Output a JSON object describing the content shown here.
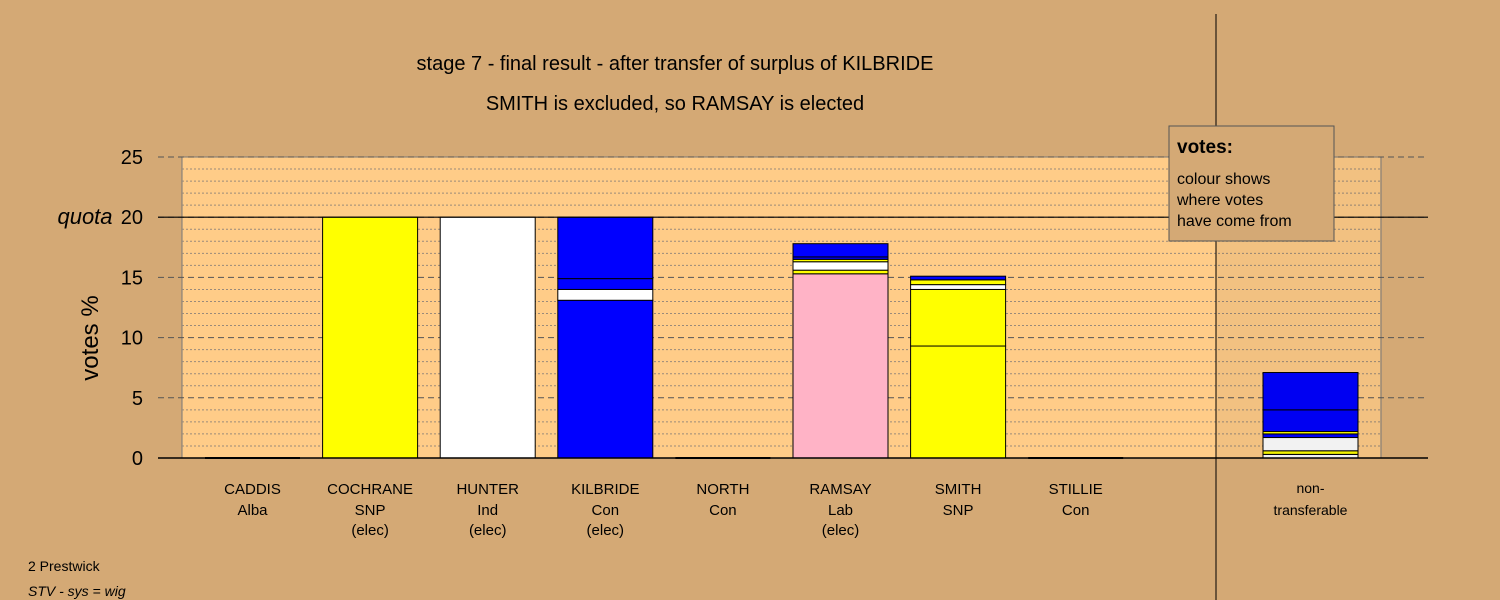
{
  "titles": {
    "line1": "stage 7 - final result - after transfer of surplus of KILBRIDE",
    "line2": "SMITH is excluded, so RAMSAY is elected"
  },
  "footer": {
    "area": "2 Prestwick",
    "system": "STV - sys = wig"
  },
  "chart_data": {
    "type": "bar",
    "stacked": true,
    "ylabel": "votes %",
    "ylim": [
      0,
      25
    ],
    "yticks": [
      0,
      5,
      10,
      15,
      20,
      25
    ],
    "quota": {
      "label": "quota",
      "value": 20
    },
    "grid": true,
    "legend": {
      "title": "votes:",
      "lines": [
        "colour shows",
        "where votes",
        "have come from"
      ],
      "placement": "top-right"
    },
    "colors": {
      "Alba": "#1a3f9c",
      "SNP": "#ffff00",
      "Ind": "#ffffff",
      "Con": "#0000ff",
      "Lab": "#ffb3c6",
      "plot_bg": "#ffcc88",
      "page_bg": "#d4a975"
    },
    "categories": [
      {
        "name": "CADDIS",
        "party": "Alba",
        "status": "",
        "segments": []
      },
      {
        "name": "COCHRANE",
        "party": "SNP",
        "status": "(elec)",
        "segments": [
          {
            "from": "SNP",
            "value": 20.0
          }
        ]
      },
      {
        "name": "HUNTER",
        "party": "Ind",
        "status": "(elec)",
        "segments": [
          {
            "from": "Ind",
            "value": 20.0
          }
        ]
      },
      {
        "name": "KILBRIDE",
        "party": "Con",
        "status": "(elec)",
        "segments": [
          {
            "from": "Con",
            "value": 13.1
          },
          {
            "from": "Ind",
            "value": 0.9
          },
          {
            "from": "Con",
            "value": 0.9
          },
          {
            "from": "Con",
            "value": 5.1
          }
        ]
      },
      {
        "name": "NORTH",
        "party": "Con",
        "status": "",
        "segments": []
      },
      {
        "name": "RAMSAY",
        "party": "Lab",
        "status": "(elec)",
        "segments": [
          {
            "from": "Lab",
            "value": 15.3
          },
          {
            "from": "SNP",
            "value": 0.3
          },
          {
            "from": "Ind",
            "value": 0.7
          },
          {
            "from": "SNP",
            "value": 0.2
          },
          {
            "from": "Con",
            "value": 0.2
          },
          {
            "from": "Con",
            "value": 1.1
          }
        ]
      },
      {
        "name": "SMITH",
        "party": "SNP",
        "status": "",
        "segments": [
          {
            "from": "SNP",
            "value": 9.3
          },
          {
            "from": "SNP",
            "value": 4.7
          },
          {
            "from": "Ind",
            "value": 0.4
          },
          {
            "from": "SNP",
            "value": 0.4
          },
          {
            "from": "Con",
            "value": 0.3
          }
        ]
      },
      {
        "name": "STILLIE",
        "party": "Con",
        "status": "",
        "segments": []
      }
    ],
    "nontransferable": {
      "label_line1": "non-",
      "label_line2": "transferable",
      "segments": [
        {
          "from": "Ind",
          "value": 0.3
        },
        {
          "from": "SNP",
          "value": 0.3
        },
        {
          "from": "Ind",
          "value": 1.1
        },
        {
          "from": "Con",
          "value": 0.3
        },
        {
          "from": "SNP",
          "value": 0.2
        },
        {
          "from": "Con",
          "value": 1.8
        },
        {
          "from": "Con",
          "value": 3.1
        }
      ]
    }
  }
}
